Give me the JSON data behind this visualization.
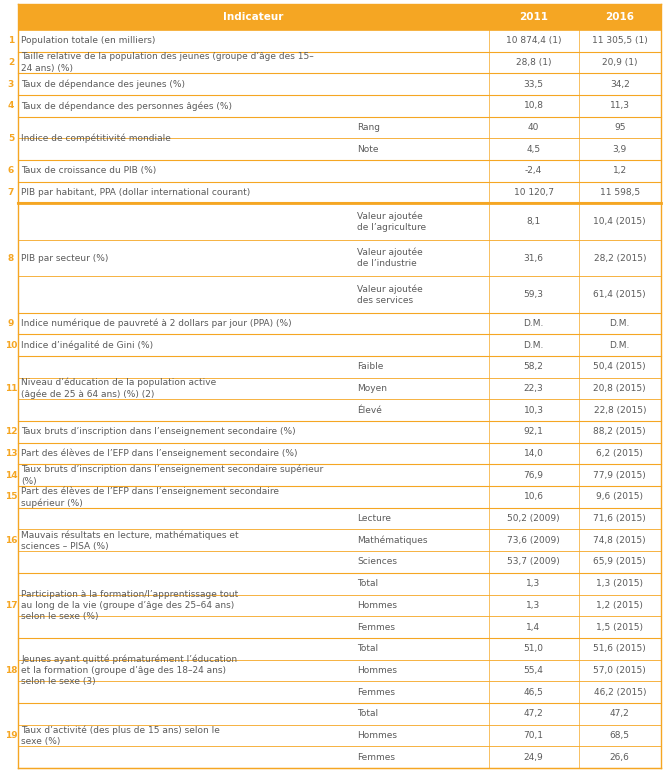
{
  "orange": "#F5A623",
  "text_color": "#5B5B5B",
  "header": [
    "Indicateur",
    "2011",
    "2016"
  ],
  "rows": [
    {
      "num": "1",
      "main": "Population totale (en milliers)",
      "sub": "",
      "v2011": "10 874,4 (1)",
      "v2016": "11 305,5 (1)"
    },
    {
      "num": "2",
      "main": "Taille relative de la population des jeunes (groupe d’âge des 15–\n24 ans) (%)",
      "sub": "",
      "v2011": "28,8 (1)",
      "v2016": "20,9 (1)"
    },
    {
      "num": "3",
      "main": "Taux de dépendance des jeunes (%)",
      "sub": "",
      "v2011": "33,5",
      "v2016": "34,2"
    },
    {
      "num": "4",
      "main": "Taux de dépendance des personnes âgées (%)",
      "sub": "",
      "v2011": "10,8",
      "v2016": "11,3"
    },
    {
      "num": "5",
      "main": "Indice de compétitivité mondiale",
      "sub": "Rang",
      "v2011": "40",
      "v2016": "95"
    },
    {
      "num": "",
      "main": "",
      "sub": "Note",
      "v2011": "4,5",
      "v2016": "3,9"
    },
    {
      "num": "6",
      "main": "Taux de croissance du PIB (%)",
      "sub": "",
      "v2011": "-2,4",
      "v2016": "1,2"
    },
    {
      "num": "7",
      "main": "PIB par habitant, PPA (dollar international courant)",
      "sub": "",
      "v2011": "10 120,7",
      "v2016": "11 598,5"
    },
    {
      "num": "8",
      "main": "PIB par secteur (%)",
      "sub": "Valeur ajoutée\nde l’agriculture",
      "v2011": "8,1",
      "v2016": "10,4 (2015)"
    },
    {
      "num": "",
      "main": "",
      "sub": "Valeur ajoutée\nde l’industrie",
      "v2011": "31,6",
      "v2016": "28,2 (2015)"
    },
    {
      "num": "",
      "main": "",
      "sub": "Valeur ajoutée\ndes services",
      "v2011": "59,3",
      "v2016": "61,4 (2015)"
    },
    {
      "num": "9",
      "main": "Indice numérique de pauvreté à 2 dollars par jour (PPA) (%)",
      "sub": "",
      "v2011": "D.M.",
      "v2016": "D.M."
    },
    {
      "num": "10",
      "main": "Indice d’inégalité de Gini (%)",
      "sub": "",
      "v2011": "D.M.",
      "v2016": "D.M."
    },
    {
      "num": "11",
      "main": "Niveau d’éducation de la population active\n(âgée de 25 à 64 ans) (%) (2)",
      "sub": "Faible",
      "v2011": "58,2",
      "v2016": "50,4 (2015)"
    },
    {
      "num": "",
      "main": "",
      "sub": "Moyen",
      "v2011": "22,3",
      "v2016": "20,8 (2015)"
    },
    {
      "num": "",
      "main": "",
      "sub": "Élevé",
      "v2011": "10,3",
      "v2016": "22,8 (2015)"
    },
    {
      "num": "12",
      "main": "Taux bruts d’inscription dans l’enseignement secondaire (%)",
      "sub": "",
      "v2011": "92,1",
      "v2016": "88,2 (2015)"
    },
    {
      "num": "13",
      "main": "Part des élèves de l’EFP dans l’enseignement secondaire (%)",
      "sub": "",
      "v2011": "14,0",
      "v2016": "6,2 (2015)"
    },
    {
      "num": "14",
      "main": "Taux bruts d’inscription dans l’enseignement secondaire supérieur\n(%)",
      "sub": "",
      "v2011": "76,9",
      "v2016": "77,9 (2015)"
    },
    {
      "num": "15",
      "main": "Part des élèves de l’EFP dans l’enseignement secondaire\nsupérieur (%)",
      "sub": "",
      "v2011": "10,6",
      "v2016": "9,6 (2015)"
    },
    {
      "num": "16",
      "main": "Mauvais résultats en lecture, mathématiques et\nsciences – PISA (%)",
      "sub": "Lecture",
      "v2011": "50,2 (2009)",
      "v2016": "71,6 (2015)"
    },
    {
      "num": "",
      "main": "",
      "sub": "Mathématiques",
      "v2011": "73,6 (2009)",
      "v2016": "74,8 (2015)"
    },
    {
      "num": "",
      "main": "",
      "sub": "Sciences",
      "v2011": "53,7 (2009)",
      "v2016": "65,9 (2015)"
    },
    {
      "num": "17",
      "main": "Participation à la formation/l’apprentissage tout\nau long de la vie (groupe d’âge des 25–64 ans)\nselon le sexe (%)",
      "sub": "Total",
      "v2011": "1,3",
      "v2016": "1,3 (2015)"
    },
    {
      "num": "",
      "main": "",
      "sub": "Hommes",
      "v2011": "1,3",
      "v2016": "1,2 (2015)"
    },
    {
      "num": "",
      "main": "",
      "sub": "Femmes",
      "v2011": "1,4",
      "v2016": "1,5 (2015)"
    },
    {
      "num": "18",
      "main": "Jeunes ayant quitté prématurément l’éducation\net la formation (groupe d’âge des 18–24 ans)\nselon le sexe (3)",
      "sub": "Total",
      "v2011": "51,0",
      "v2016": "51,6 (2015)"
    },
    {
      "num": "",
      "main": "",
      "sub": "Hommes",
      "v2011": "55,4",
      "v2016": "57,0 (2015)"
    },
    {
      "num": "",
      "main": "",
      "sub": "Femmes",
      "v2011": "46,5",
      "v2016": "46,2 (2015)"
    },
    {
      "num": "19",
      "main": "Taux d’activité (des plus de 15 ans) selon le\nsexe (%)",
      "sub": "Total",
      "v2011": "47,2",
      "v2016": "47,2"
    },
    {
      "num": "",
      "main": "",
      "sub": "Hommes",
      "v2011": "70,1",
      "v2016": "68,5"
    },
    {
      "num": "",
      "main": "",
      "sub": "Femmes",
      "v2011": "24,9",
      "v2016": "26,6"
    }
  ],
  "thick_line_after_idx": 7
}
